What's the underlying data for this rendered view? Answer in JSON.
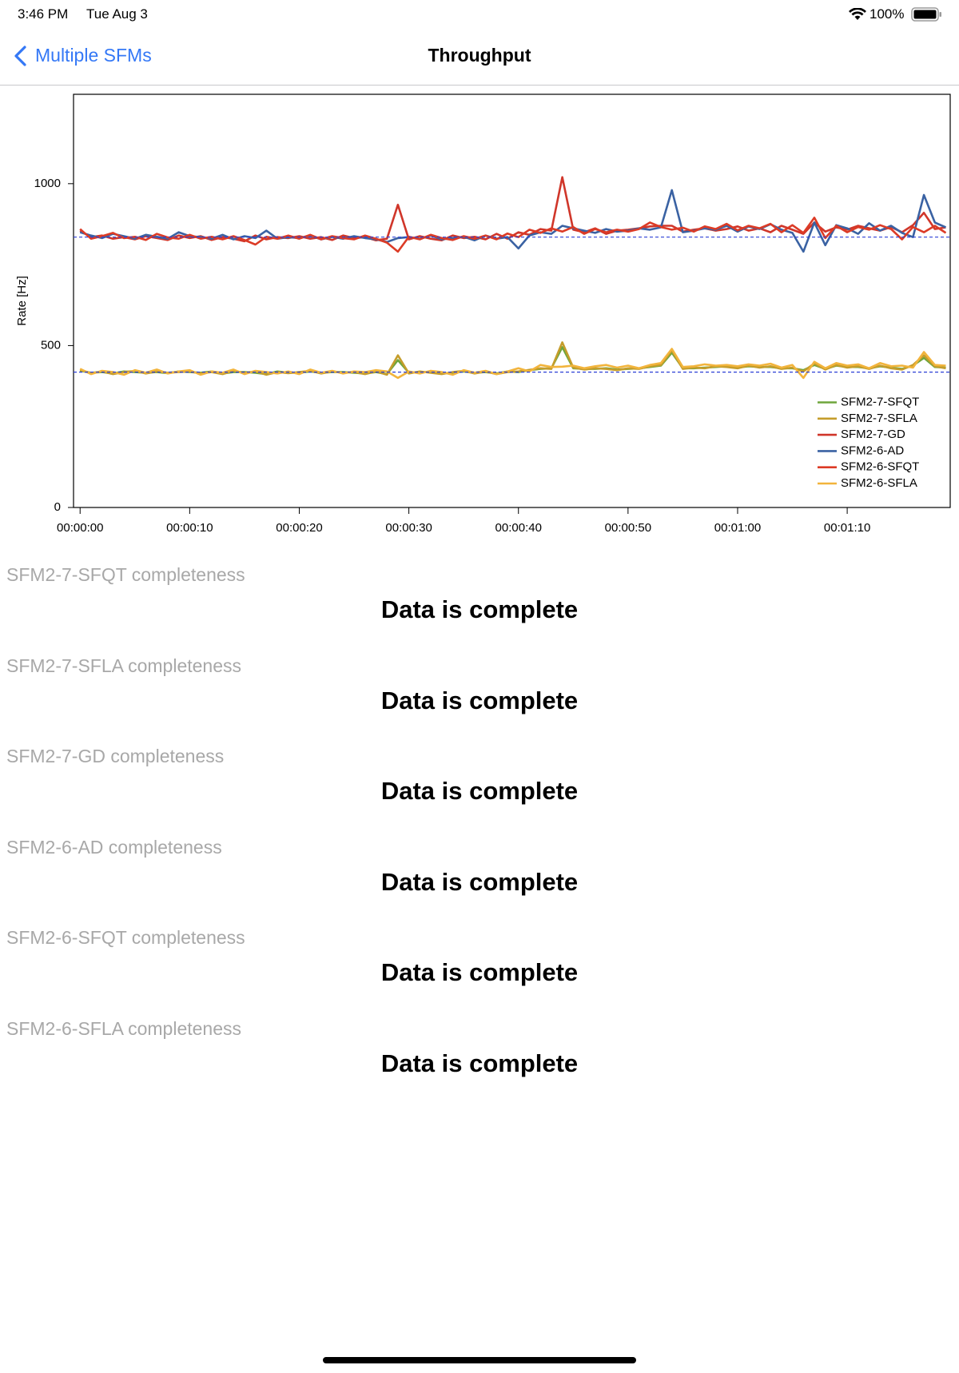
{
  "status_bar": {
    "time": "3:46 PM",
    "date": "Tue Aug 3",
    "battery": "100%"
  },
  "nav": {
    "back": "Multiple SFMs",
    "title": "Throughput"
  },
  "chart_data": {
    "type": "line",
    "y_label": "Rate [Hz]",
    "x": [
      0,
      1,
      2,
      3,
      4,
      5,
      6,
      7,
      8,
      9,
      10,
      11,
      12,
      13,
      14,
      15,
      16,
      17,
      18,
      19,
      20,
      21,
      22,
      23,
      24,
      25,
      26,
      27,
      28,
      29,
      30,
      31,
      32,
      33,
      34,
      35,
      36,
      37,
      38,
      39,
      40,
      41,
      42,
      43,
      44,
      45,
      46,
      47,
      48,
      49,
      50,
      51,
      52,
      53,
      54,
      55,
      56,
      57,
      58,
      59,
      60,
      61,
      62,
      63,
      64,
      65,
      66,
      67,
      68,
      69,
      70,
      71,
      72,
      73,
      74,
      75,
      76,
      77,
      78,
      79
    ],
    "xlim": [
      -0.6,
      79.4
    ],
    "xticks": [
      {
        "value": 0,
        "label": "00:00:00"
      },
      {
        "value": 10,
        "label": "00:00:10"
      },
      {
        "value": 20,
        "label": "00:00:20"
      },
      {
        "value": 30,
        "label": "00:00:30"
      },
      {
        "value": 40,
        "label": "00:00:40"
      },
      {
        "value": 50,
        "label": "00:00:50"
      },
      {
        "value": 60,
        "label": "00:01:00"
      },
      {
        "value": 70,
        "label": "00:01:10"
      }
    ],
    "ylim": [
      0,
      1276
    ],
    "yticks": [
      0,
      500,
      1000
    ],
    "reference_lines": [
      835,
      418
    ],
    "legend": "lower right",
    "series": [
      {
        "name": "SFM2-7-SFQT",
        "color": "#6ea53c",
        "values": [
          422,
          416,
          418,
          414,
          420,
          418,
          416,
          418,
          415,
          420,
          418,
          416,
          420,
          414,
          418,
          418,
          416,
          412,
          420,
          416,
          416,
          420,
          416,
          418,
          418,
          416,
          414,
          418,
          412,
          455,
          416,
          418,
          418,
          414,
          416,
          420,
          416,
          418,
          414,
          420,
          418,
          424,
          428,
          430,
          495,
          430,
          428,
          428,
          430,
          426,
          428,
          430,
          434,
          438,
          478,
          430,
          430,
          432,
          434,
          436,
          432,
          436,
          434,
          434,
          430,
          430,
          424,
          440,
          428,
          438,
          434,
          434,
          430,
          436,
          432,
          428,
          438,
          462,
          434,
          432
        ]
      },
      {
        "name": "SFM2-7-SFLA",
        "color": "#c59d2b",
        "values": [
          425,
          415,
          420,
          412,
          418,
          422,
          414,
          420,
          416,
          418,
          420,
          414,
          418,
          412,
          422,
          416,
          420,
          410,
          418,
          415,
          418,
          422,
          414,
          420,
          416,
          418,
          412,
          420,
          410,
          470,
          414,
          420,
          416,
          412,
          418,
          422,
          414,
          420,
          412,
          418,
          420,
          425,
          430,
          428,
          510,
          432,
          426,
          430,
          428,
          424,
          430,
          428,
          436,
          440,
          485,
          428,
          432,
          430,
          436,
          434,
          430,
          438,
          432,
          436,
          428,
          432,
          420,
          445,
          426,
          440,
          432,
          436,
          428,
          438,
          430,
          426,
          440,
          470,
          436,
          430
        ]
      },
      {
        "name": "SFM2-7-GD",
        "color": "#d0362a",
        "values": [
          855,
          835,
          840,
          830,
          835,
          828,
          838,
          832,
          826,
          840,
          832,
          838,
          826,
          835,
          830,
          822,
          840,
          828,
          835,
          832,
          838,
          830,
          835,
          826,
          840,
          832,
          835,
          825,
          830,
          935,
          828,
          838,
          830,
          825,
          840,
          832,
          836,
          828,
          845,
          830,
          850,
          842,
          860,
          855,
          1020,
          858,
          850,
          862,
          845,
          855,
          858,
          862,
          868,
          870,
          870,
          852,
          858,
          862,
          855,
          860,
          868,
          855,
          862,
          850,
          870,
          858,
          845,
          880,
          852,
          865,
          858,
          870,
          862,
          855,
          866,
          850,
          872,
          910,
          860,
          865
        ]
      },
      {
        "name": "SFM2-6-AD",
        "color": "#3a62a3",
        "values": [
          850,
          840,
          832,
          845,
          838,
          830,
          842,
          836,
          830,
          850,
          838,
          835,
          830,
          842,
          828,
          838,
          832,
          855,
          830,
          835,
          832,
          840,
          828,
          836,
          830,
          838,
          832,
          828,
          820,
          832,
          835,
          830,
          840,
          828,
          832,
          836,
          825,
          840,
          830,
          835,
          800,
          840,
          850,
          845,
          870,
          862,
          855,
          848,
          860,
          852,
          855,
          862,
          858,
          865,
          980,
          850,
          855,
          862,
          858,
          870,
          852,
          868,
          860,
          875,
          858,
          848,
          790,
          880,
          810,
          872,
          862,
          845,
          878,
          855,
          870,
          848,
          835,
          965,
          880,
          865
        ]
      },
      {
        "name": "SFM2-6-SFQT",
        "color": "#dc3b26",
        "values": [
          860,
          830,
          838,
          848,
          832,
          836,
          826,
          845,
          834,
          830,
          842,
          830,
          836,
          828,
          838,
          826,
          812,
          836,
          830,
          840,
          830,
          842,
          828,
          838,
          832,
          828,
          840,
          830,
          818,
          790,
          836,
          828,
          842,
          832,
          826,
          838,
          830,
          840,
          828,
          846,
          835,
          858,
          848,
          862,
          852,
          866,
          845,
          860,
          850,
          858,
          852,
          860,
          880,
          866,
          858,
          864,
          852,
          868,
          860,
          876,
          856,
          870,
          862,
          876,
          850,
          872,
          848,
          895,
          832,
          870,
          850,
          866,
          858,
          872,
          860,
          828,
          866,
          850,
          870,
          848
        ]
      },
      {
        "name": "SFM2-6-SFLA",
        "color": "#f2b43c",
        "values": [
          428,
          412,
          422,
          418,
          410,
          424,
          416,
          426,
          414,
          420,
          424,
          410,
          420,
          416,
          426,
          412,
          422,
          418,
          414,
          420,
          412,
          426,
          416,
          422,
          414,
          420,
          418,
          424,
          420,
          400,
          420,
          414,
          422,
          418,
          410,
          424,
          416,
          422,
          412,
          420,
          430,
          420,
          440,
          434,
          435,
          438,
          430,
          436,
          440,
          432,
          438,
          430,
          440,
          446,
          490,
          434,
          436,
          442,
          438,
          440,
          436,
          442,
          438,
          444,
          432,
          440,
          400,
          450,
          430,
          446,
          438,
          442,
          430,
          446,
          436,
          438,
          432,
          480,
          440,
          438
        ]
      }
    ]
  },
  "completeness": [
    {
      "label": "SFM2-7-SFQT completeness",
      "status": "Data is complete"
    },
    {
      "label": "SFM2-7-SFLA completeness",
      "status": "Data is complete"
    },
    {
      "label": "SFM2-7-GD completeness",
      "status": "Data is complete"
    },
    {
      "label": "SFM2-6-AD completeness",
      "status": "Data is complete"
    },
    {
      "label": "SFM2-6-SFQT completeness",
      "status": "Data is complete"
    },
    {
      "label": "SFM2-6-SFLA completeness",
      "status": "Data is complete"
    }
  ]
}
